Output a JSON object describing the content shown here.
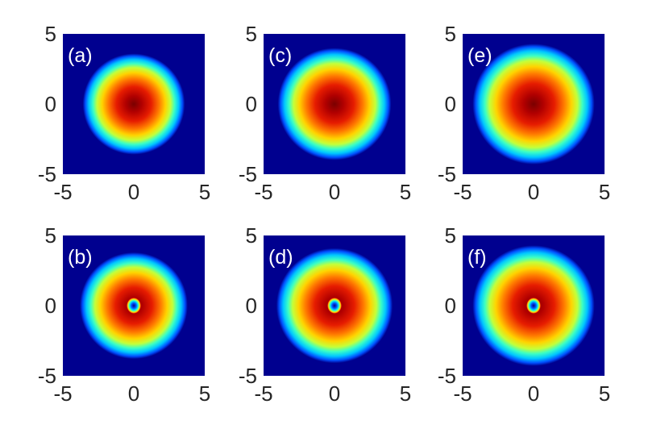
{
  "chart_data": [
    {
      "type": "heatmap",
      "panel_label": "(a)",
      "xlim": [
        -5,
        5
      ],
      "ylim": [
        -5,
        5
      ],
      "x_ticks": [
        "-5",
        "0",
        "5"
      ],
      "y_ticks": [
        "5",
        "0",
        "-5"
      ],
      "colormap": "jet",
      "radius": 3.6,
      "center": [
        0,
        0
      ],
      "vortex": false
    },
    {
      "type": "heatmap",
      "panel_label": "(c)",
      "xlim": [
        -5,
        5
      ],
      "ylim": [
        -5,
        5
      ],
      "x_ticks": [
        "-5",
        "0",
        "5"
      ],
      "y_ticks": [
        "5",
        "0",
        "-5"
      ],
      "colormap": "jet",
      "radius": 4.0,
      "center": [
        0,
        0
      ],
      "vortex": false
    },
    {
      "type": "heatmap",
      "panel_label": "(e)",
      "xlim": [
        -5,
        5
      ],
      "ylim": [
        -5,
        5
      ],
      "x_ticks": [
        "-5",
        "0",
        "5"
      ],
      "y_ticks": [
        "5",
        "0",
        "-5"
      ],
      "colormap": "jet",
      "radius": 4.3,
      "center": [
        0,
        0
      ],
      "vortex": false
    },
    {
      "type": "heatmap",
      "panel_label": "(b)",
      "xlim": [
        -5,
        5
      ],
      "ylim": [
        -5,
        5
      ],
      "x_ticks": [
        "-5",
        "0",
        "5"
      ],
      "y_ticks": [
        "5",
        "0",
        "-5"
      ],
      "colormap": "jet",
      "radius": 3.8,
      "center": [
        0,
        0
      ],
      "vortex": true,
      "vortex_center": [
        0,
        0
      ]
    },
    {
      "type": "heatmap",
      "panel_label": "(d)",
      "xlim": [
        -5,
        5
      ],
      "ylim": [
        -5,
        5
      ],
      "x_ticks": [
        "-5",
        "0",
        "5"
      ],
      "y_ticks": [
        "5",
        "0",
        "-5"
      ],
      "colormap": "jet",
      "radius": 4.1,
      "center": [
        0,
        0
      ],
      "vortex": true,
      "vortex_center": [
        0,
        0
      ]
    },
    {
      "type": "heatmap",
      "panel_label": "(f)",
      "xlim": [
        -5,
        5
      ],
      "ylim": [
        -5,
        5
      ],
      "x_ticks": [
        "-5",
        "0",
        "5"
      ],
      "y_ticks": [
        "5",
        "0",
        "-5"
      ],
      "colormap": "jet",
      "radius": 4.3,
      "center": [
        0,
        0
      ],
      "vortex": true,
      "vortex_center": [
        0,
        0
      ]
    }
  ],
  "colors": {
    "background": "#00008f",
    "tick_text": "#262626",
    "label_text": "#ffffff"
  }
}
